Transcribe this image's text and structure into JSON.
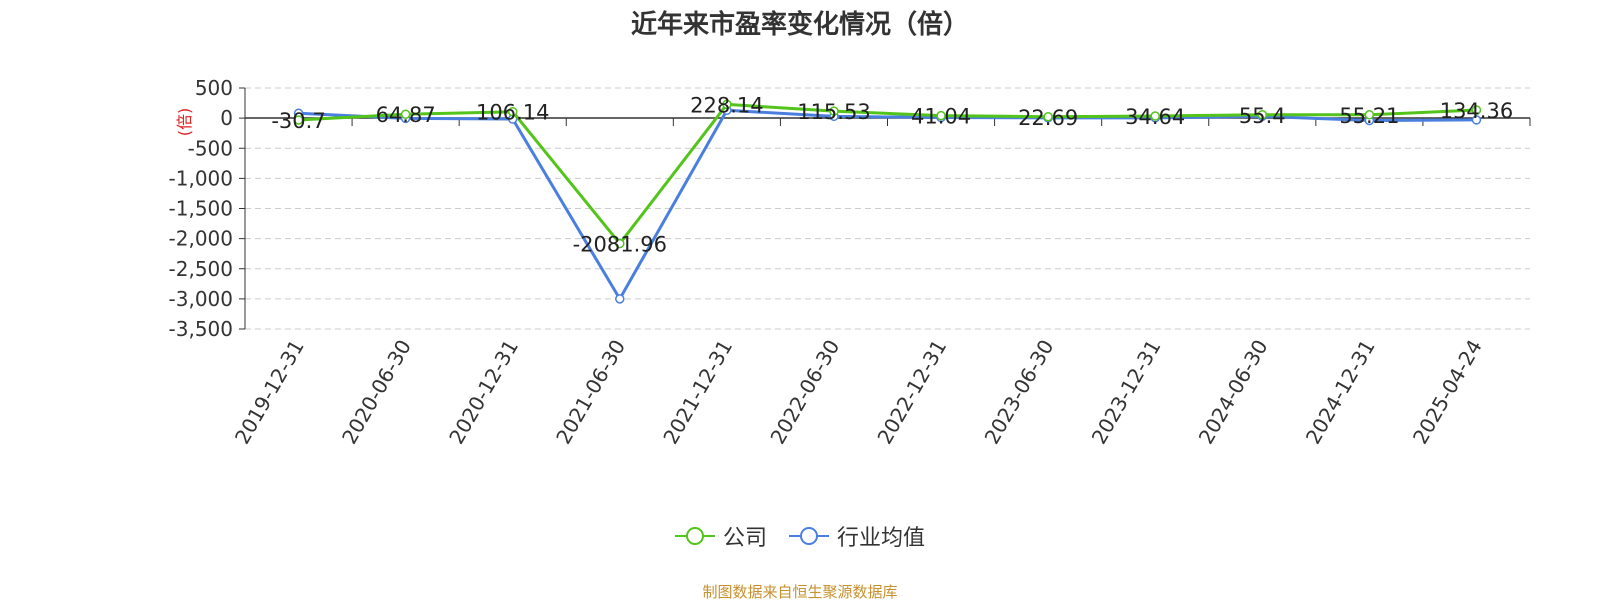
{
  "chart_data": {
    "type": "line",
    "title": "近年来市盈率变化情况（倍）",
    "ylabel": "(倍)",
    "ylim": [
      -3500,
      500
    ],
    "yticks": [
      500,
      0,
      -500,
      -1000,
      -1500,
      -2000,
      -2500,
      -3000,
      -3500
    ],
    "ytick_labels": [
      "500",
      "0",
      "-500",
      "-1,000",
      "-1,500",
      "-2,000",
      "-2,500",
      "-3,000",
      "-3,500"
    ],
    "categories": [
      "2019-12-31",
      "2020-06-30",
      "2020-12-31",
      "2021-06-30",
      "2021-12-31",
      "2022-06-30",
      "2022-12-31",
      "2023-06-30",
      "2023-12-31",
      "2024-06-30",
      "2024-12-31",
      "2025-04-24"
    ],
    "series": [
      {
        "name": "公司",
        "color": "#52c41a",
        "values": [
          -30.7,
          64.87,
          106.14,
          -2081.96,
          228.14,
          115.53,
          41.04,
          22.69,
          34.64,
          55.4,
          55.21,
          134.36
        ],
        "labels": [
          "-30.7",
          "64.87",
          "106.14",
          "-2081.96",
          "228.14",
          "115.53",
          "41.04",
          "22.69",
          "34.64",
          "55.4",
          "55.21",
          "134.36"
        ]
      },
      {
        "name": "行业均值",
        "color": "#4a7fe0",
        "values": [
          80,
          -5,
          -15,
          -3000,
          130,
          30,
          10,
          5,
          5,
          30,
          -40,
          -30
        ]
      }
    ],
    "grid": true,
    "legend_position": "bottom-center"
  },
  "source_text": "制图数据来自恒生聚源数据库"
}
